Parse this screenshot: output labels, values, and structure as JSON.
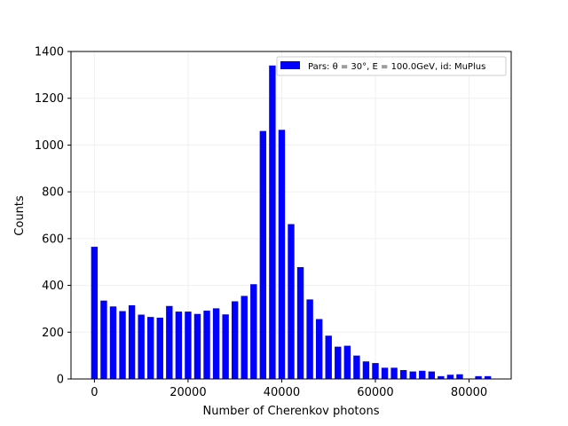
{
  "chart_data": {
    "type": "bar",
    "xlabel": "Number of Cherenkov photons",
    "ylabel": "Counts",
    "xlim": [
      -5000,
      89000
    ],
    "ylim": [
      0,
      1400
    ],
    "xticks": [
      0,
      20000,
      40000,
      60000,
      80000
    ],
    "yticks": [
      0,
      200,
      400,
      600,
      800,
      1000,
      1200,
      1400
    ],
    "grid": true,
    "legend_position": "top-right",
    "bar_width": 1400,
    "color": "#0000ff",
    "series": [
      {
        "name": "Pars: θ = 30°, E = 100.0GeV, id: MuPlus",
        "x": [
          0,
          2000,
          4000,
          6000,
          8000,
          10000,
          12000,
          14000,
          16000,
          18000,
          20000,
          22000,
          24000,
          26000,
          28000,
          30000,
          32000,
          34000,
          36000,
          38000,
          40000,
          42000,
          44000,
          46000,
          48000,
          50000,
          52000,
          54000,
          56000,
          58000,
          60000,
          62000,
          64000,
          66000,
          68000,
          70000,
          72000,
          74000,
          76000,
          78000,
          80000,
          82000,
          84000
        ],
        "values": [
          565,
          335,
          310,
          290,
          315,
          275,
          265,
          262,
          312,
          288,
          288,
          278,
          292,
          302,
          276,
          332,
          355,
          405,
          1060,
          1340,
          1065,
          662,
          478,
          340,
          256,
          185,
          138,
          142,
          100,
          75,
          68,
          48,
          48,
          38,
          32,
          35,
          32,
          12,
          18,
          20,
          2,
          12,
          12
        ]
      }
    ]
  }
}
